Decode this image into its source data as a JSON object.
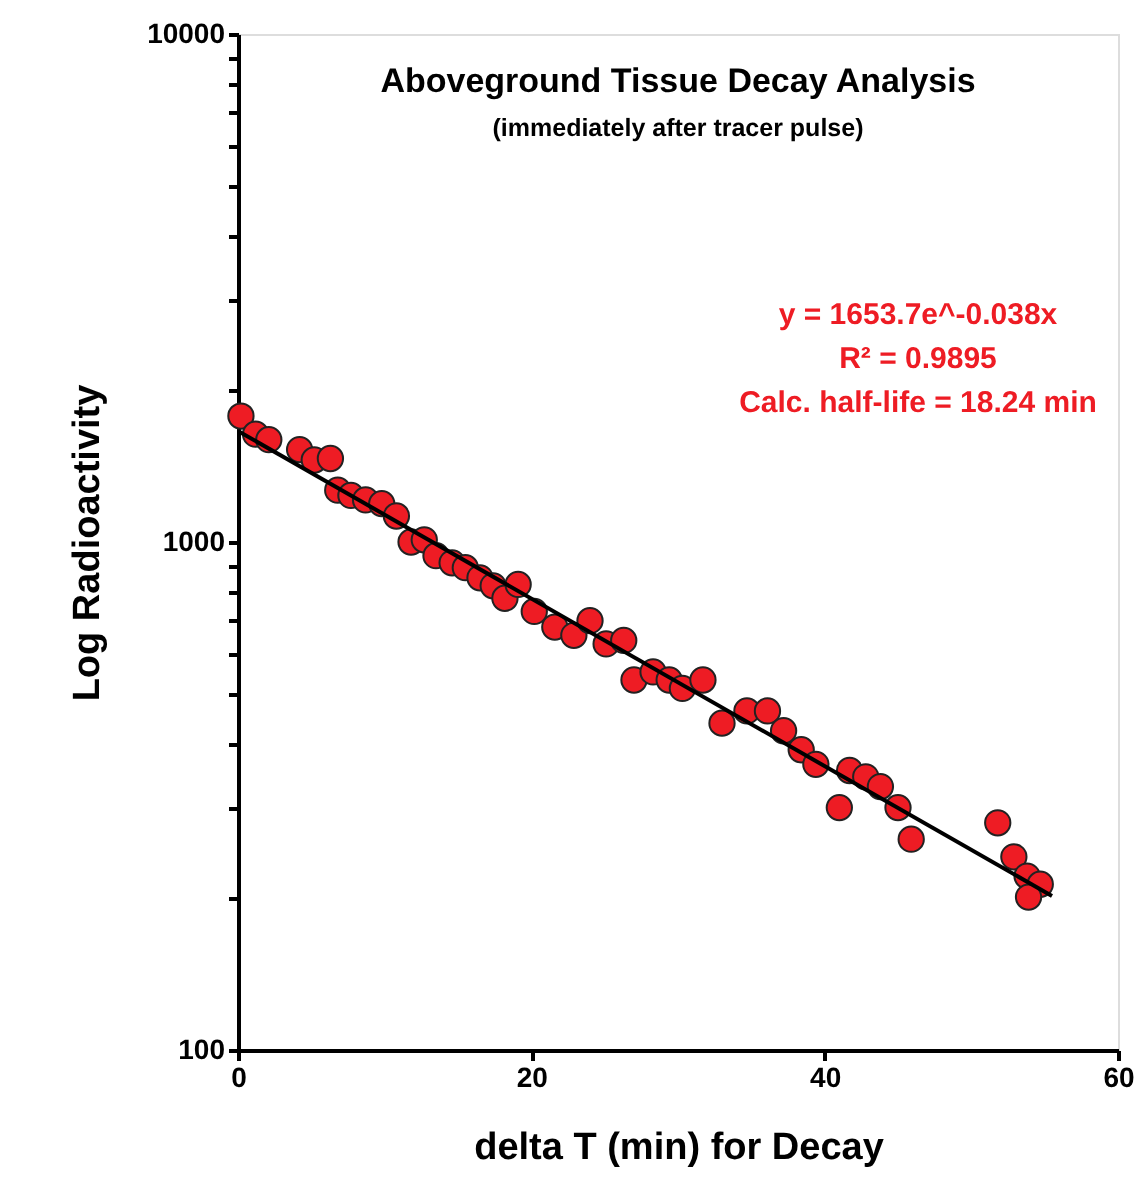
{
  "chart_data": {
    "type": "scatter",
    "title": "Aboveground Tissue Decay Analysis",
    "subtitle": "(immediately after tracer pulse)",
    "xlabel": "delta T (min) for Decay",
    "ylabel": "Log Radioactivity",
    "log": "y",
    "grid": false,
    "xlim": [
      0,
      60
    ],
    "xticks": [
      0,
      20,
      40,
      60
    ],
    "ylim": [
      100,
      10000
    ],
    "yticks": [
      100,
      {
        "value": 200,
        "label": null
      },
      {
        "value": 300,
        "label": null
      },
      {
        "value": 400,
        "label": null
      },
      {
        "value": 500,
        "label": null
      },
      {
        "value": 600,
        "label": null
      },
      {
        "value": 700,
        "label": null
      },
      {
        "value": 800,
        "label": null
      },
      {
        "value": 900,
        "label": null
      },
      1000,
      {
        "value": 2000,
        "label": null
      },
      {
        "value": 3000,
        "label": null
      },
      {
        "value": 4000,
        "label": null
      },
      {
        "value": 5000,
        "label": null
      },
      {
        "value": 6000,
        "label": null
      },
      {
        "value": 7000,
        "label": null
      },
      {
        "value": 8000,
        "label": null
      },
      {
        "value": 9000,
        "label": null
      },
      10000
    ],
    "annotations": [
      "y = 1653.7e^-0.038x",
      "R² = 0.9895",
      "Calc. half-life = 18.24 min"
    ],
    "series": [
      {
        "marker": "circle",
        "color": "#ee1c24",
        "x": [
          0.2,
          1.2,
          2.1,
          4.2,
          5.2,
          6.3,
          6.8,
          7.7,
          8.7,
          9.8,
          10.8,
          11.8,
          12.7,
          13.5,
          14.6,
          15.5,
          16.5,
          17.4,
          18.2,
          19.1,
          20.2,
          21.6,
          22.9,
          24.0,
          25.1,
          26.3,
          27.0,
          28.3,
          29.4,
          30.3,
          31.7,
          33.0,
          34.7,
          36.1,
          37.2,
          38.4,
          39.4,
          41.0,
          41.7,
          42.8,
          43.8,
          45.0,
          45.9,
          51.8,
          52.9,
          53.8,
          54.7,
          53.9
        ],
        "values": [
          1770,
          1630,
          1590,
          1520,
          1450,
          1460,
          1265,
          1235,
          1210,
          1190,
          1125,
          1000,
          1010,
          940,
          910,
          890,
          850,
          820,
          775,
          825,
          730,
          680,
          655,
          700,
          630,
          640,
          535,
          555,
          535,
          515,
          535,
          440,
          465,
          465,
          425,
          390,
          365,
          300,
          355,
          345,
          330,
          300,
          260,
          280,
          240,
          220,
          212,
          200
        ]
      },
      {
        "type": "line",
        "line_style": "solid",
        "color": "#000000",
        "x": [
          0,
          55.5
        ],
        "values": [
          1654,
          201
        ]
      }
    ]
  }
}
